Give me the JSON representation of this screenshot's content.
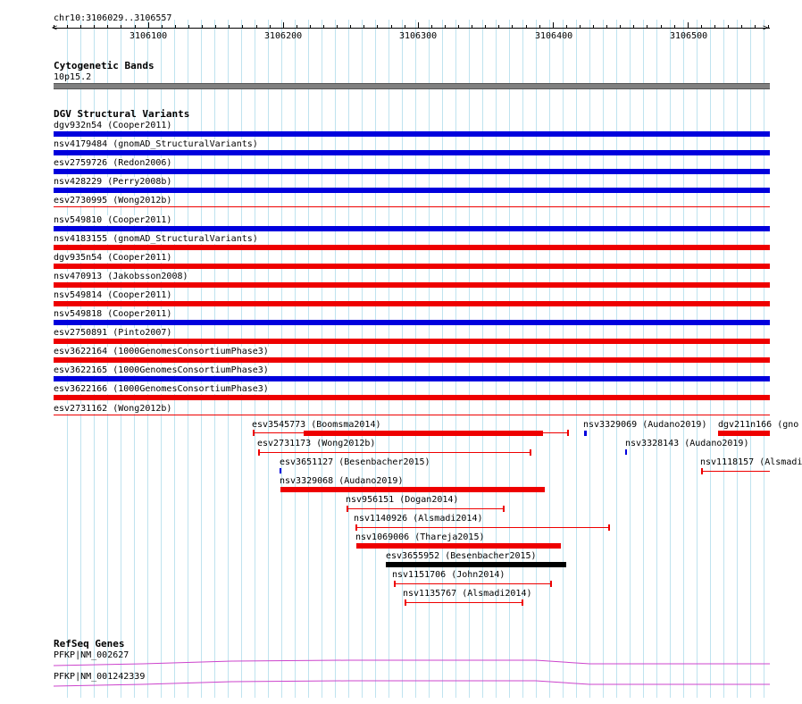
{
  "ruler": {
    "position": "chr10:3106029..3106557",
    "ticks": [
      "3106100",
      "3106200",
      "3106300",
      "3106400",
      "3106500"
    ]
  },
  "cytoband": {
    "title": "Cytogenetic Bands",
    "band": "10p15.2",
    "color": "#808080"
  },
  "dgv": {
    "title": "DGV Structural Variants",
    "colors": {
      "loss": "#ee0000",
      "gain": "#0000dd",
      "complex": "#000000"
    },
    "full_rows": [
      {
        "label": "dgv932n54 (Cooper2011)",
        "color": "gain"
      },
      {
        "label": "nsv4179484 (gnomAD_StructuralVariants)",
        "color": "gain"
      },
      {
        "label": "esv2759726 (Redon2006)",
        "color": "gain"
      },
      {
        "label": "nsv428229 (Perry2008b)",
        "color": "gain"
      },
      {
        "label": "esv2730995 (Wong2012b)",
        "color": "loss_thin"
      },
      {
        "label": "nsv549810 (Cooper2011)",
        "color": "gain"
      },
      {
        "label": "nsv4183155 (gnomAD_StructuralVariants)",
        "color": "loss"
      },
      {
        "label": "dgv935n54 (Cooper2011)",
        "color": "loss"
      },
      {
        "label": "nsv470913 (Jakobsson2008)",
        "color": "loss"
      },
      {
        "label": "nsv549814 (Cooper2011)",
        "color": "loss"
      },
      {
        "label": "nsv549818 (Cooper2011)",
        "color": "gain"
      },
      {
        "label": "esv2750891 (Pinto2007)",
        "color": "loss"
      },
      {
        "label": "esv3622164 (1000GenomesConsortiumPhase3)",
        "color": "loss"
      },
      {
        "label": "esv3622165 (1000GenomesConsortiumPhase3)",
        "color": "gain"
      },
      {
        "label": "esv3622166 (1000GenomesConsortiumPhase3)",
        "color": "loss"
      },
      {
        "label": "esv2731162 (Wong2012b)",
        "color": "loss_thin"
      }
    ],
    "features": [
      {
        "label": "esv3545773 (Boomsma2014)"
      },
      {
        "label": "nsv3329069 (Audano2019)"
      },
      {
        "label": "dgv211n166 (gno"
      },
      {
        "label": "esv2731173 (Wong2012b)"
      },
      {
        "label": "nsv3328143 (Audano2019)"
      },
      {
        "label": "esv3651127 (Besenbacher2015)"
      },
      {
        "label": "nsv1118157 (Alsmadi"
      },
      {
        "label": "nsv3329068 (Audano2019)"
      },
      {
        "label": "nsv956151 (Dogan2014)"
      },
      {
        "label": "nsv1140926 (Alsmadi2014)"
      },
      {
        "label": "nsv1069006 (Thareja2015)"
      },
      {
        "label": "esv3655952 (Besenbacher2015)"
      },
      {
        "label": "nsv1151706 (John2014)"
      },
      {
        "label": "nsv1135767 (Alsmadi2014)"
      }
    ]
  },
  "refseq": {
    "title": "RefSeq Genes",
    "color": "#cc44cc",
    "genes": [
      {
        "label": "PFKP|NM_002627"
      },
      {
        "label": "PFKP|NM_001242339"
      }
    ]
  }
}
